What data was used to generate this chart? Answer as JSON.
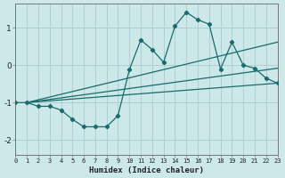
{
  "xlabel": "Humidex (Indice chaleur)",
  "bg_color": "#cce8e8",
  "grid_color_major": "#aacccc",
  "grid_color_minor": "#bbdddd",
  "line_color": "#1a6b6b",
  "xlim": [
    0,
    23
  ],
  "ylim": [
    -2.4,
    1.65
  ],
  "x_ticks": [
    0,
    1,
    2,
    3,
    4,
    5,
    6,
    7,
    8,
    9,
    10,
    11,
    12,
    13,
    14,
    15,
    16,
    17,
    18,
    19,
    20,
    21,
    22,
    23
  ],
  "y_ticks": [
    -2,
    -1,
    0,
    1
  ],
  "series": {
    "main": {
      "x": [
        0,
        1,
        2,
        3,
        4,
        5,
        6,
        7,
        8,
        9,
        10,
        11,
        12,
        13,
        14,
        15,
        16,
        17,
        18,
        19,
        20,
        21,
        22,
        23
      ],
      "y": [
        -1.0,
        -1.0,
        -1.1,
        -1.1,
        -1.2,
        -1.45,
        -1.65,
        -1.65,
        -1.65,
        -1.35,
        -0.12,
        0.68,
        0.42,
        0.08,
        1.05,
        1.42,
        1.22,
        1.1,
        -0.1,
        0.62,
        0.0,
        -0.08,
        -0.35,
        -0.48
      ]
    },
    "line1": {
      "x": [
        1,
        23
      ],
      "y": [
        -1.0,
        0.62
      ]
    },
    "line2": {
      "x": [
        1,
        23
      ],
      "y": [
        -1.0,
        -0.08
      ]
    },
    "line3": {
      "x": [
        1,
        23
      ],
      "y": [
        -1.0,
        -0.48
      ]
    }
  },
  "marker": "D",
  "marker_size": 2.2,
  "line_width": 0.9
}
